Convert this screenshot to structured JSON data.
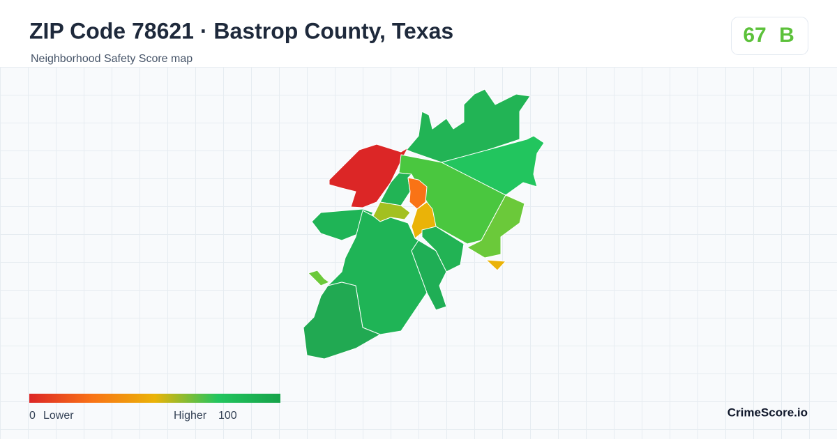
{
  "header": {
    "title": "ZIP Code 78621 · Bastrop County, Texas",
    "subtitle": "Neighborhood Safety Score map"
  },
  "score": {
    "value": 67,
    "grade": "B"
  },
  "legend": {
    "min": 0,
    "min_label": "Lower",
    "max_label": "Higher",
    "max": 100
  },
  "brand": "CrimeScore.io"
}
